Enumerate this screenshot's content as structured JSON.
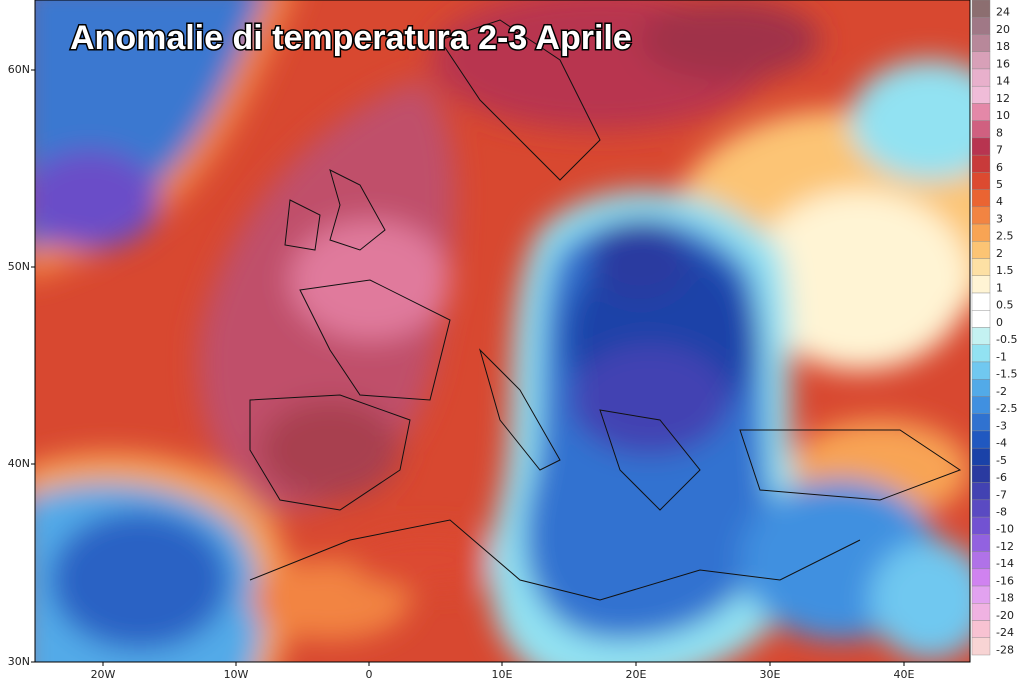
{
  "title": "Anomalie di temperatura 2-3 Aprile",
  "lat_labels": [
    "60N",
    "50N",
    "40N",
    "30N"
  ],
  "lon_labels": [
    "20W",
    "10W",
    "0",
    "10E",
    "20E",
    "30E",
    "40E"
  ],
  "legend": [
    {
      "value": 24,
      "color": "#8c6e70"
    },
    {
      "value": 20,
      "color": "#a07886"
    },
    {
      "value": 18,
      "color": "#b8889a"
    },
    {
      "value": 16,
      "color": "#d8a0b8"
    },
    {
      "value": 14,
      "color": "#e8b0cc"
    },
    {
      "value": 12,
      "color": "#f0bcd8"
    },
    {
      "value": 10,
      "color": "#e488a8"
    },
    {
      "value": 8,
      "color": "#d06080"
    },
    {
      "value": 7,
      "color": "#b83450"
    },
    {
      "value": 6,
      "color": "#c83a3a"
    },
    {
      "value": 5,
      "color": "#dc4a30"
    },
    {
      "value": 4,
      "color": "#ea6432"
    },
    {
      "value": 3,
      "color": "#f28442"
    },
    {
      "value": 2.5,
      "color": "#f8a454"
    },
    {
      "value": 2,
      "color": "#fcc474"
    },
    {
      "value": 1.5,
      "color": "#fde0a4"
    },
    {
      "value": 1,
      "color": "#fff4d4"
    },
    {
      "value": 0.5,
      "color": "#ffffff"
    },
    {
      "value": 0,
      "color": "#ffffff"
    },
    {
      "value": -0.5,
      "color": "#c4f2f2"
    },
    {
      "value": -1,
      "color": "#92e2f2"
    },
    {
      "value": -1.5,
      "color": "#70c8f0"
    },
    {
      "value": -2,
      "color": "#52aae8"
    },
    {
      "value": -2.5,
      "color": "#4090e0"
    },
    {
      "value": -3,
      "color": "#3072d0"
    },
    {
      "value": -4,
      "color": "#2058c0"
    },
    {
      "value": -5,
      "color": "#1a42a8"
    },
    {
      "value": -6,
      "color": "#2a3aa0"
    },
    {
      "value": -7,
      "color": "#4242b2"
    },
    {
      "value": -8,
      "color": "#5a4ac2"
    },
    {
      "value": -10,
      "color": "#7252d2"
    },
    {
      "value": -12,
      "color": "#9262e0"
    },
    {
      "value": -14,
      "color": "#b072e8"
    },
    {
      "value": -16,
      "color": "#d082f0"
    },
    {
      "value": -18,
      "color": "#e2a2f0"
    },
    {
      "value": -20,
      "color": "#f0b2e2"
    },
    {
      "value": -24,
      "color": "#f8c2d2"
    },
    {
      "value": -28,
      "color": "#f8d4d4"
    }
  ]
}
